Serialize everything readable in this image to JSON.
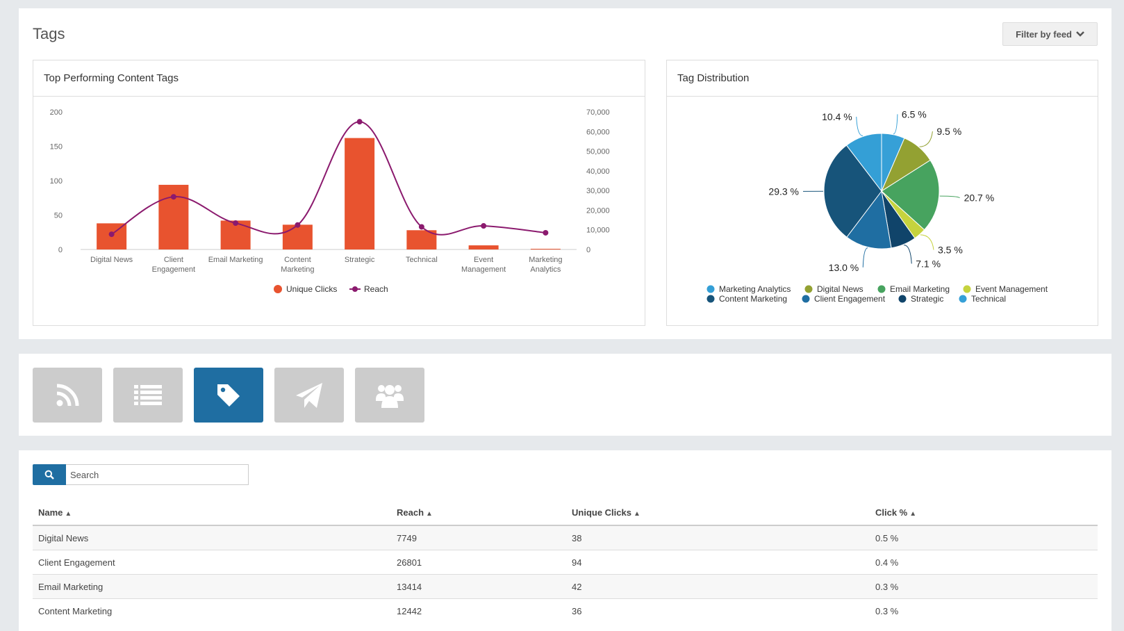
{
  "header": {
    "title": "Tags",
    "filter_label": "Filter by feed"
  },
  "bar_card": {
    "title": "Top Performing Content Tags"
  },
  "pie_card": {
    "title": "Tag Distribution"
  },
  "chart_data": [
    {
      "type": "bar",
      "title": "Top Performing Content Tags",
      "categories": [
        [
          "Digital News"
        ],
        [
          "Client",
          "Engagement"
        ],
        [
          "Email Marketing"
        ],
        [
          "Content",
          "Marketing"
        ],
        [
          "Strategic"
        ],
        [
          "Technical"
        ],
        [
          "Event",
          "Management"
        ],
        [
          "Marketing",
          "Analytics"
        ]
      ],
      "series": [
        {
          "name": "Unique Clicks",
          "kind": "bar",
          "axis": "left",
          "color": "#e8532f",
          "values": [
            38,
            94,
            42,
            36,
            162,
            28,
            6,
            1
          ]
        },
        {
          "name": "Reach",
          "kind": "line",
          "axis": "right",
          "color": "#8b1a6e",
          "values": [
            7749,
            26801,
            13414,
            12442,
            65000,
            11500,
            12000,
            8500
          ]
        }
      ],
      "left_axis": {
        "ylim": [
          0,
          200
        ],
        "ticks": [
          "0",
          "50",
          "100",
          "150",
          "200"
        ]
      },
      "right_axis": {
        "ylim": [
          0,
          70000
        ],
        "ticks": [
          "0",
          "10,000",
          "20,000",
          "30,000",
          "40,000",
          "50,000",
          "60,000",
          "70,000"
        ]
      },
      "legend_position": "bottom"
    },
    {
      "type": "pie",
      "title": "Tag Distribution",
      "slices": [
        {
          "label": "Technical",
          "value": 6.5,
          "display": "6.5 %",
          "color": "#36a0d7"
        },
        {
          "label": "Digital News",
          "value": 9.5,
          "display": "9.5 %",
          "color": "#93a132"
        },
        {
          "label": "Email Marketing",
          "value": 20.7,
          "display": "20.7 %",
          "color": "#47a35f"
        },
        {
          "label": "Event Management",
          "value": 3.5,
          "display": "3.5 %",
          "color": "#c6d33e"
        },
        {
          "label": "Strategic",
          "value": 7.1,
          "display": "7.1 %",
          "color": "#10446a"
        },
        {
          "label": "Client Engagement",
          "value": 13.0,
          "display": "13.0 %",
          "color": "#1f6ea2"
        },
        {
          "label": "Content Marketing",
          "value": 29.3,
          "display": "29.3 %",
          "color": "#17547a"
        },
        {
          "label": "Marketing Analytics",
          "value": 10.4,
          "display": "10.4 %",
          "color": "#349fd6"
        }
      ],
      "legend": [
        "Marketing Analytics",
        "Digital News",
        "Email Marketing",
        "Event Management",
        "Content Marketing",
        "Client Engagement",
        "Strategic",
        "Technical"
      ],
      "legend_position": "bottom"
    }
  ],
  "nav_tiles": [
    {
      "icon": "rss-icon",
      "active": false
    },
    {
      "icon": "list-icon",
      "active": false
    },
    {
      "icon": "tag-icon",
      "active": true
    },
    {
      "icon": "paper-plane-icon",
      "active": false
    },
    {
      "icon": "users-icon",
      "active": false
    }
  ],
  "search": {
    "placeholder": "Search",
    "value": ""
  },
  "table": {
    "columns": [
      "Name",
      "Reach",
      "Unique Clicks",
      "Click %"
    ],
    "rows": [
      [
        "Digital News",
        "7749",
        "38",
        "0.5 %"
      ],
      [
        "Client Engagement",
        "26801",
        "94",
        "0.4 %"
      ],
      [
        "Email Marketing",
        "13414",
        "42",
        "0.3 %"
      ],
      [
        "Content Marketing",
        "12442",
        "36",
        "0.3 %"
      ]
    ]
  },
  "colors": {
    "accent": "#1f6ea2",
    "tile_inactive": "#cccccc"
  }
}
